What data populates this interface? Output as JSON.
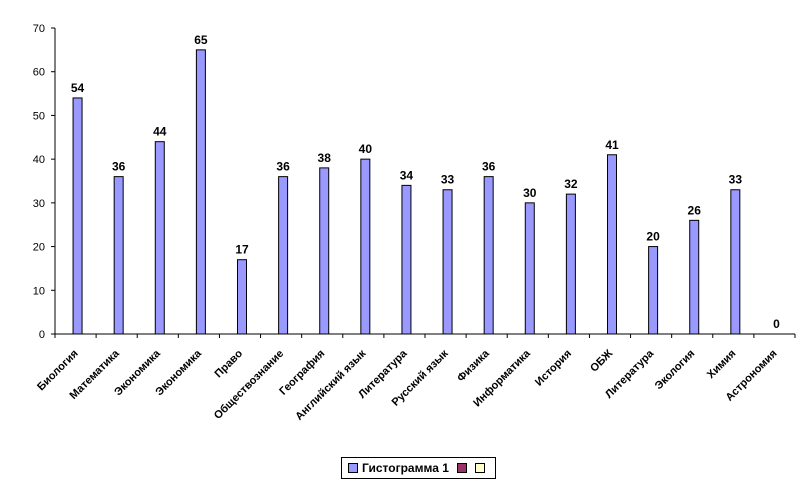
{
  "chart_data": {
    "type": "bar",
    "categories": [
      "Биология",
      "Математика",
      "Экономика",
      "Экономика",
      "Право",
      "Обществознание",
      "География",
      "Английский язык",
      "Литература",
      "Русский язык",
      "Физика",
      "Информатика",
      "История",
      "ОБЖ",
      "Литература",
      "Экология",
      "Химия",
      "Астрономия"
    ],
    "series": [
      {
        "name": "Гистограмма 1",
        "values": [
          54,
          36,
          44,
          65,
          17,
          36,
          38,
          40,
          34,
          33,
          36,
          30,
          32,
          41,
          20,
          26,
          33,
          0
        ],
        "color": "#9999ff"
      }
    ],
    "ylim": [
      0,
      70
    ],
    "yticks": [
      0,
      10,
      20,
      30,
      40,
      50,
      60,
      70
    ],
    "grid": false,
    "legend_position": "bottom",
    "title": "",
    "xlabel": "",
    "ylabel": ""
  },
  "legend": {
    "items": [
      {
        "label": "Гистограмма 1",
        "color": "#9999ff"
      },
      {
        "label": "",
        "color": "#993366"
      },
      {
        "label": "",
        "color": "#ffffcc"
      }
    ]
  }
}
